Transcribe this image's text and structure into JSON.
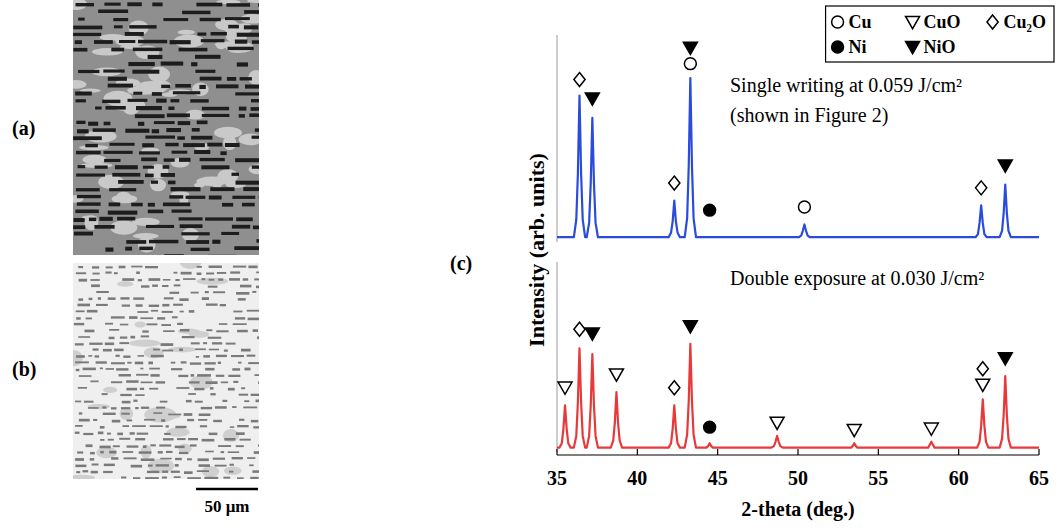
{
  "figure": {
    "panel_labels": [
      "(a)",
      "(b)",
      "(c)"
    ],
    "scale_bar": "50 μm"
  },
  "chart_data": [
    {
      "type": "line",
      "y_label": "Intensity (arb. units)",
      "annotations": [
        "Single writing at 0.059 J/cm²",
        "(shown in Figure 2)"
      ],
      "xlim": [
        35,
        65
      ],
      "ylim": [
        0,
        1.3
      ],
      "tick_labels": false,
      "grid": false,
      "legend": "top-right",
      "phases": [
        {
          "name": "Cu",
          "marker": "circle-open"
        },
        {
          "name": "CuO",
          "marker": "triangle-down-open"
        },
        {
          "name": "Cu₂O",
          "marker": "diamond-open"
        },
        {
          "name": "Ni",
          "marker": "circle-filled"
        },
        {
          "name": "NiO",
          "marker": "triangle-down-filled"
        }
      ],
      "series": [
        {
          "color": "#2a4bdc",
          "x": [
            35,
            36.05,
            36.2,
            36.3,
            36.4,
            36.5,
            36.6,
            36.75,
            36.85,
            37.0,
            37.1,
            37.2,
            37.3,
            37.4,
            37.55,
            41.95,
            42.1,
            42.2,
            42.3,
            42.4,
            42.5,
            42.65,
            42.95,
            43.1,
            43.2,
            43.3,
            43.4,
            43.5,
            43.65,
            50.05,
            50.2,
            50.3,
            50.4,
            50.5,
            50.6,
            50.75,
            61.05,
            61.2,
            61.3,
            61.4,
            61.5,
            61.6,
            61.75,
            62.55,
            62.7,
            62.8,
            62.9,
            63.0,
            63.1,
            63.25,
            65
          ],
          "values": [
            0.03,
            0.03,
            0.14,
            0.43,
            0.92,
            0.43,
            0.14,
            0.03,
            0.03,
            0.12,
            0.37,
            0.78,
            0.37,
            0.12,
            0.03,
            0.03,
            0.06,
            0.13,
            0.26,
            0.13,
            0.06,
            0.03,
            0.03,
            0.15,
            0.48,
            1.03,
            0.48,
            0.15,
            0.03,
            0.03,
            0.04,
            0.07,
            0.11,
            0.07,
            0.04,
            0.03,
            0.03,
            0.05,
            0.12,
            0.23,
            0.12,
            0.05,
            0.03,
            0.03,
            0.07,
            0.18,
            0.36,
            0.18,
            0.07,
            0.03,
            0.03
          ]
        }
      ],
      "peak_marks": [
        {
          "x": [
            43.3,
            50.4
          ],
          "y": [
            1.12,
            0.22
          ]
        },
        {
          "x": [],
          "y": []
        },
        {
          "x": [
            36.4,
            42.3,
            61.4
          ],
          "y": [
            1.02,
            0.37,
            0.34
          ]
        },
        {
          "x": [
            44.5
          ],
          "y": [
            0.2
          ]
        },
        {
          "x": [
            37.2,
            43.3,
            62.9
          ],
          "y": [
            0.9,
            1.22,
            0.48
          ]
        }
      ]
    },
    {
      "type": "line",
      "x_label": "2-theta (deg.)",
      "annotations": [
        "Double exposure at 0.030 J/cm²"
      ],
      "xlim": [
        35,
        65
      ],
      "ylim": [
        0,
        1.3
      ],
      "xticks": [
        35,
        40,
        45,
        50,
        55,
        60,
        65
      ],
      "tick_labels": "x",
      "grid": false,
      "series": [
        {
          "color": "#e8393a",
          "x": [
            35,
            35.15,
            35.3,
            35.4,
            35.5,
            35.6,
            35.7,
            35.85,
            36.05,
            36.2,
            36.3,
            36.4,
            36.5,
            36.6,
            36.75,
            36.85,
            37.0,
            37.1,
            37.2,
            37.3,
            37.4,
            37.55,
            38.35,
            38.5,
            38.6,
            38.7,
            38.8,
            38.9,
            39.05,
            41.95,
            42.1,
            42.2,
            42.3,
            42.4,
            42.5,
            42.65,
            42.95,
            43.1,
            43.2,
            43.3,
            43.4,
            43.5,
            43.65,
            44.15,
            44.3,
            44.4,
            44.5,
            44.6,
            44.7,
            44.85,
            48.35,
            48.5,
            48.6,
            48.7,
            48.8,
            48.9,
            49.05,
            53.15,
            53.3,
            53.4,
            53.5,
            53.6,
            53.7,
            53.85,
            57.95,
            58.1,
            58.2,
            58.3,
            58.4,
            58.5,
            58.65,
            61.15,
            61.3,
            61.4,
            61.5,
            61.6,
            61.7,
            61.85,
            62.55,
            62.7,
            62.8,
            62.9,
            63.0,
            63.1,
            63.25,
            65
          ],
          "values": [
            0.03,
            0.03,
            0.06,
            0.16,
            0.32,
            0.16,
            0.06,
            0.03,
            0.03,
            0.11,
            0.34,
            0.71,
            0.34,
            0.11,
            0.03,
            0.03,
            0.11,
            0.32,
            0.67,
            0.32,
            0.11,
            0.03,
            0.03,
            0.08,
            0.2,
            0.41,
            0.2,
            0.08,
            0.03,
            0.03,
            0.06,
            0.16,
            0.32,
            0.16,
            0.06,
            0.03,
            0.03,
            0.12,
            0.35,
            0.74,
            0.35,
            0.12,
            0.03,
            0.03,
            0.03,
            0.04,
            0.06,
            0.04,
            0.03,
            0.03,
            0.03,
            0.04,
            0.07,
            0.11,
            0.07,
            0.04,
            0.03,
            0.03,
            0.03,
            0.04,
            0.06,
            0.04,
            0.03,
            0.03,
            0.03,
            0.03,
            0.05,
            0.07,
            0.05,
            0.03,
            0.03,
            0.03,
            0.07,
            0.18,
            0.36,
            0.18,
            0.07,
            0.03,
            0.03,
            0.09,
            0.25,
            0.52,
            0.25,
            0.09,
            0.03,
            0.03
          ]
        }
      ],
      "peak_marks": [
        {
          "x": [],
          "y": []
        },
        {
          "x": [
            35.5,
            38.7,
            48.7,
            53.5,
            58.3,
            61.5
          ],
          "y": [
            0.44,
            0.53,
            0.2,
            0.15,
            0.16,
            0.46
          ]
        },
        {
          "x": [
            36.4,
            42.3,
            61.5
          ],
          "y": [
            0.84,
            0.44,
            0.57
          ]
        },
        {
          "x": [
            44.5
          ],
          "y": [
            0.17
          ]
        },
        {
          "x": [
            37.2,
            43.3,
            62.9
          ],
          "y": [
            0.81,
            0.86,
            0.64
          ]
        }
      ]
    }
  ]
}
